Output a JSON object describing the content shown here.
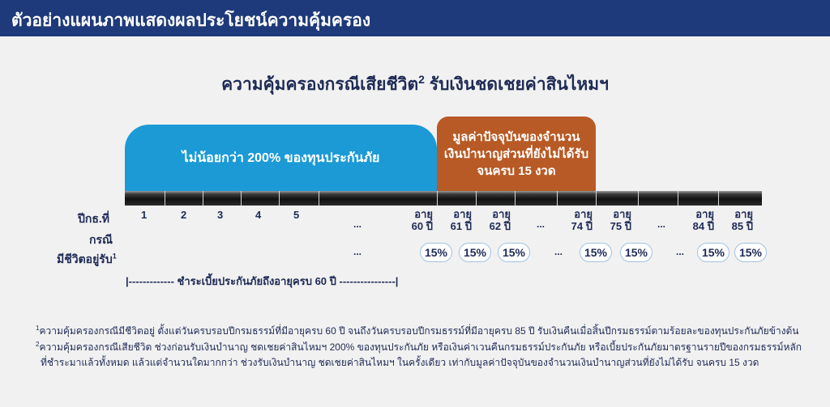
{
  "header": {
    "title": "ตัวอย่างแผนภาพแสดงผลประโยชน์ความคุ้มครอง"
  },
  "main_title": {
    "text": "ความคุ้มครองกรณีเสียชีวิต",
    "sup": "2",
    "suffix": " รับเงินชดเชยค่าสินไหมฯ"
  },
  "boxes": {
    "blue_label": "ไม่น้อยกว่า 200% ของทุนประกันภัย",
    "orange_lines": [
      "มูลค่าปัจจุบันของจำนวน",
      "เงินบำนาญส่วนที่ยังไม่ได้รับ",
      "จนครบ 15 งวด"
    ]
  },
  "rows": {
    "policy_year_label": "ปีกธ.ที่",
    "case_label": "กรณี",
    "survival_label": "มีชีวิตอยู่รับ",
    "survival_sup": "1"
  },
  "policy_years": [
    "1",
    "2",
    "3",
    "4",
    "5"
  ],
  "ages": [
    {
      "line1": "อายุ",
      "line2": "60 ปี"
    },
    {
      "line1": "อายุ",
      "line2": "61 ปี"
    },
    {
      "line1": "อายุ",
      "line2": "62 ปี"
    },
    {
      "line1": "อายุ",
      "line2": "74 ปี"
    },
    {
      "line1": "อายุ",
      "line2": "75 ปี"
    },
    {
      "line1": "อายุ",
      "line2": "84 ปี"
    },
    {
      "line1": "อายุ",
      "line2": "85 ปี"
    }
  ],
  "ellipsis": "...",
  "payout_percent": "15%",
  "premium_note": "|------------- ชำระเบี้ยประกันภัยถึงอายุครบ 60 ปี ----------------|",
  "footnotes": {
    "f1_sup": "1",
    "f1": "ความคุ้มครองกรณีมีชีวิตอยู่ ตั้งแต่วันครบรอบปีกรมธรรม์ที่มีอายุครบ 60 ปี จนถึงวันครบรอบปีกรมธรรม์ที่มีอายุครบ 85 ปี รับเงินคืนเมื่อสิ้นปีกรมธรรม์ตามร้อยละของทุนประกันภัยข้างต้น",
    "f2_sup": "2",
    "f2_line1": "ความคุ้มครองกรณีเสียชีวิต ช่วงก่อนรับเงินบำนาญ ชดเชยค่าสินไหมฯ 200% ของทุนประกันภัย หรือเงินค่าเวนคืนกรมธรรม์ประกันภัย หรือเบี้ยประกันภัยมาตรฐานรายปีของกรมธรรม์หลัก",
    "f2_line2": "ที่ชำระมาแล้วทั้งหมด แล้วแต่จำนวนใดมากกว่า ช่วงรับเงินบำนาญ ชดเชยค่าสินไหมฯ ในครั้งเดียว เท่ากับมูลค่าปัจจุบันของจำนวนเงินบำนาญส่วนที่ยังไม่ได้รับ จนครบ 15 งวด"
  },
  "colors": {
    "header_bg": "#1f3a7a",
    "blue_box": "#1b9ad6",
    "orange_box": "#b85a25",
    "text": "#1e2a55"
  }
}
